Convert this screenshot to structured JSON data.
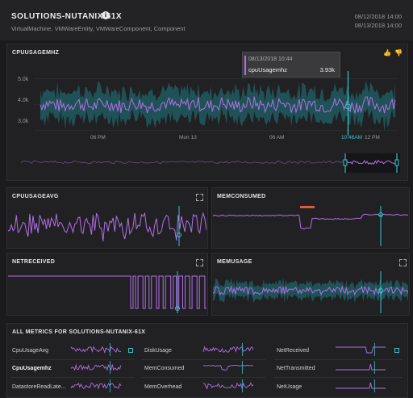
{
  "header": {
    "title": "SOLUTIONS-NUTANIX-61X",
    "subtitle": "VirtualMachine, VMWareEntity, VMWareComponent, Component",
    "date_start": "08/12/2018 14:00",
    "date_end": "08/13/2018 14:00"
  },
  "main_chart": {
    "title": "CPUUSAGEMHZ",
    "y_ticks": [
      "5.0k",
      "4.0k",
      "3.0k"
    ],
    "x_ticks": [
      "06 PM",
      "Mon 13",
      "06 AM",
      "10:46AM",
      "12 PM"
    ],
    "tooltip": {
      "date": "08/13/2018 10:44",
      "metric": "cpuUsagemhz",
      "value": "3.93k"
    }
  },
  "panels": {
    "cpuusageavg": {
      "title": "CPUUSAGEAVG"
    },
    "memconsumed": {
      "title": "MEMCONSUMED"
    },
    "netreceived": {
      "title": "NETRECEIVED"
    },
    "memusage": {
      "title": "MEMUSAGE"
    }
  },
  "all_metrics": {
    "title": "ALL METRICS FOR SOLUTIONS-NUTANIX-61X",
    "col1": [
      "CpuUsageAvg",
      "CpuUsagemhz",
      "DatastoreReadLate..."
    ],
    "col2": [
      "DiskUsage",
      "MemConsumed",
      "MemOverhead"
    ],
    "col3": [
      "NetReceived",
      "NetTransmitted",
      "NetUsage"
    ]
  },
  "chart_data": {
    "type": "line",
    "title": "CPUUSAGEMHZ",
    "ylim": [
      2.8,
      5.3
    ],
    "x_ticks": [
      "06 PM",
      "Mon 13",
      "06 AM",
      "10:46AM",
      "12 PM"
    ],
    "y_ticks": [
      "5.0k",
      "4.0k",
      "3.0k"
    ],
    "series": [
      {
        "name": "cpuUsagemhz",
        "typical_range": [
          3.7,
          4.3
        ]
      }
    ],
    "highlight": {
      "time": "08/13/2018 10:44",
      "value": 3.93
    }
  },
  "colors": {
    "line": "#b26ee8",
    "band": "#1f5a5f",
    "marker": "#36c3c9",
    "alert": "#e2583e"
  }
}
